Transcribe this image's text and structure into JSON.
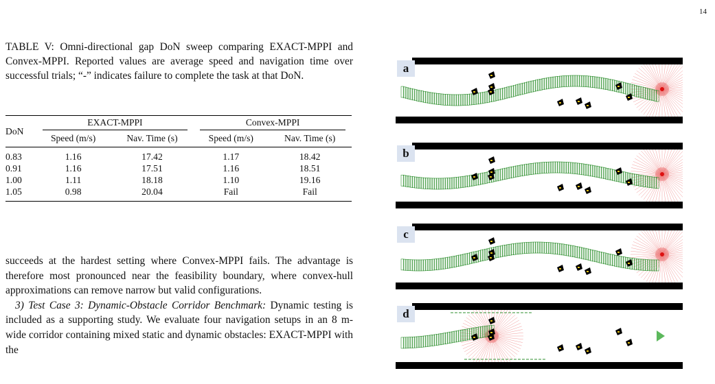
{
  "page_number": "14",
  "caption": "TABLE V: Omni-directional gap DoN sweep comparing EXACT-MPPI and Convex-MPPI. Reported values are average speed and navigation time over successful trials; “-” indicates failure to complete the task at that DoN.",
  "table": {
    "don_header": "DoN",
    "groups": [
      "EXACT-MPPI",
      "Convex-MPPI"
    ],
    "subheaders": [
      "Speed (m/s)",
      "Nav. Time (s)",
      "Speed (m/s)",
      "Nav. Time (s)"
    ],
    "rows": [
      [
        "0.83",
        "1.16",
        "17.42",
        "1.17",
        "18.42"
      ],
      [
        "0.91",
        "1.16",
        "17.51",
        "1.16",
        "18.51"
      ],
      [
        "1.00",
        "1.11",
        "18.18",
        "1.10",
        "19.16"
      ],
      [
        "1.05",
        "0.98",
        "20.04",
        "Fail",
        "Fail"
      ]
    ]
  },
  "body": {
    "para1": "succeeds at the hardest setting where Convex-MPPI fails. The advantage is therefore most pronounced near the feasibility boundary, where convex-hull approximations can remove narrow but valid configurations.",
    "subsection_title": "3) Test Case 3: Dynamic-Obstacle Corridor Benchmark:",
    "para2": " Dynamic testing is included as a supporting study. We evaluate four navigation setups in an 8 m-wide corridor containing mixed static and dynamic obstacles: EXACT-MPPI with the"
  },
  "figure": {
    "panels": [
      {
        "label": "a"
      },
      {
        "label": "b"
      },
      {
        "label": "c"
      },
      {
        "label": "d"
      }
    ],
    "colors": {
      "wall": "#000000",
      "trajectory": "#2f8f2f",
      "rays": "#e64545",
      "goal_marker": "#5cb85c",
      "obstacle": "#000000",
      "obstacle_accent": "#e8c41a",
      "label_bg": "#dbe3f0"
    }
  }
}
